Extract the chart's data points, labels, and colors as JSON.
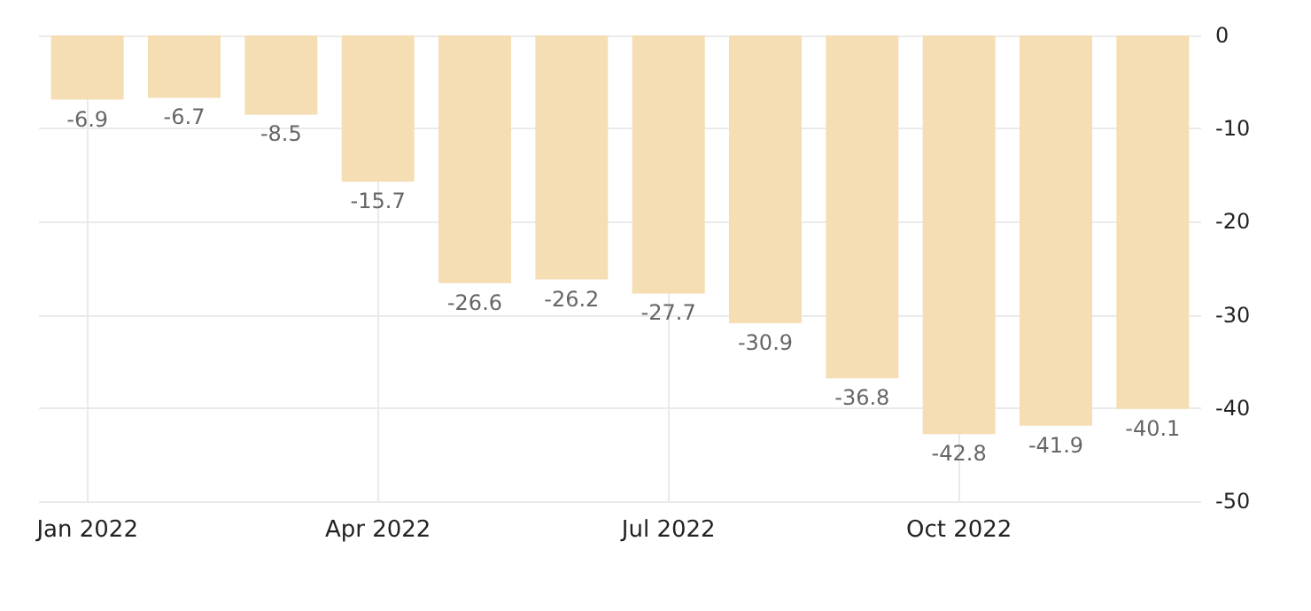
{
  "chart_data": {
    "type": "bar",
    "categories": [
      "Jan 2022",
      null,
      null,
      "Apr 2022",
      null,
      null,
      "Jul 2022",
      null,
      null,
      "Oct 2022",
      null,
      null
    ],
    "values": [
      -6.9,
      -6.7,
      -8.5,
      -15.7,
      -26.6,
      -26.2,
      -27.7,
      -30.9,
      -36.8,
      -42.8,
      -41.9,
      -40.1
    ],
    "color": "#f5deb3",
    "ylim": [
      -50,
      0
    ],
    "yticks": [
      -50,
      -40,
      -30,
      -20,
      -10,
      0
    ],
    "grid": true,
    "data_labels": true
  }
}
